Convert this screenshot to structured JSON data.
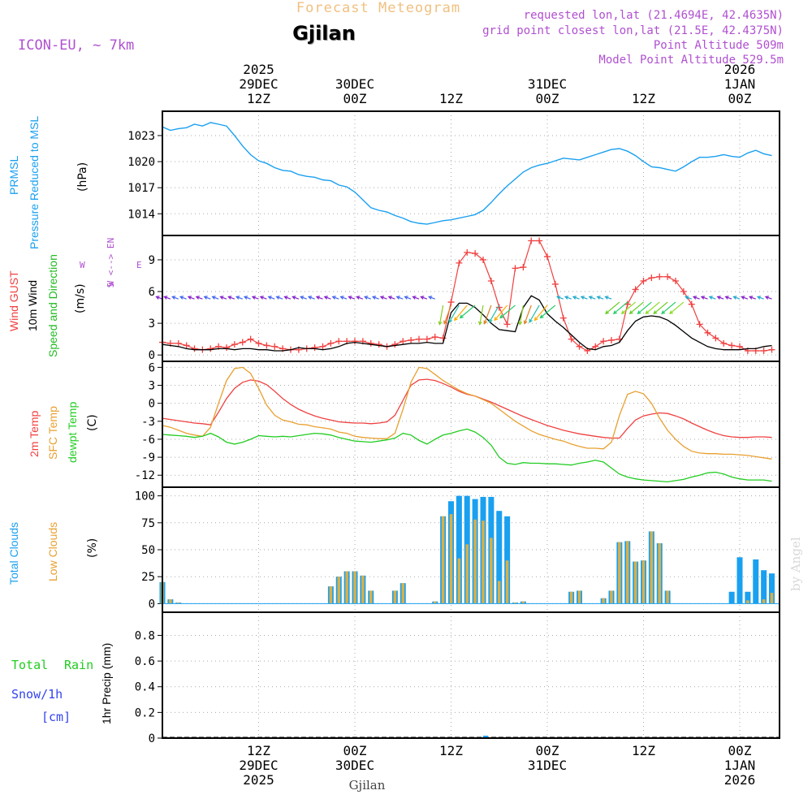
{
  "header": {
    "product": "Forecast Meteogram",
    "location": "Gjilan",
    "model": "ICON-EU, ~ 7km",
    "requested": "requested lon,lat (21.4694E, 42.4635N)",
    "gridpoint": "grid point closest lon,lat (21.5E, 42.4375N)",
    "point_alt": "Point Altitude 509m",
    "model_alt": "Model Point Altitude 529.5m",
    "footer_label": "Gjilan",
    "credit": "by Angel"
  },
  "colors": {
    "pressure": "#1aa0f0",
    "gust": "#f04040",
    "wind": "#000000",
    "dir_label": "#22bb22",
    "temp2m": "#f04040",
    "sfc": "#e8a030",
    "dewpt": "#22cc22",
    "total_cloud": "#1aa0f0",
    "low_cloud": "#d8b048",
    "rain": "#22cc22",
    "snow": "#3344ee",
    "header_purple": "#b050d0",
    "title_orange": "#f0c080"
  },
  "time_axis": {
    "top": [
      {
        "t": 12,
        "lines": [
          "2025",
          "29DEC",
          "12Z"
        ]
      },
      {
        "t": 24,
        "lines": [
          "30DEC",
          "00Z"
        ]
      },
      {
        "t": 36,
        "lines": [
          "12Z"
        ]
      },
      {
        "t": 48,
        "lines": [
          "31DEC",
          "00Z"
        ]
      },
      {
        "t": 60,
        "lines": [
          "12Z"
        ]
      },
      {
        "t": 72,
        "lines": [
          "2026",
          "1JAN",
          "00Z"
        ]
      }
    ],
    "bottom": [
      {
        "t": 12,
        "lines": [
          "12Z",
          "29DEC",
          "2025"
        ]
      },
      {
        "t": 24,
        "lines": [
          "00Z",
          "30DEC"
        ]
      },
      {
        "t": 36,
        "lines": [
          "12Z"
        ]
      },
      {
        "t": 48,
        "lines": [
          "00Z",
          "31DEC"
        ]
      },
      {
        "t": 60,
        "lines": [
          "12Z"
        ]
      },
      {
        "t": 72,
        "lines": [
          "00Z",
          "1JAN",
          "2026"
        ]
      }
    ]
  },
  "chart_data": [
    {
      "type": "line",
      "title": "PRMSL Pressure Reduced to MSL",
      "ylabel": "(hPa)",
      "ylim": [
        1011.5,
        1025.8
      ],
      "yticks": [
        1014,
        1017,
        1020,
        1023
      ],
      "x": [
        0,
        1,
        2,
        3,
        4,
        5,
        6,
        7,
        8,
        9,
        10,
        11,
        12,
        13,
        14,
        15,
        16,
        17,
        18,
        19,
        20,
        21,
        22,
        23,
        24,
        25,
        26,
        27,
        28,
        29,
        30,
        31,
        32,
        33,
        34,
        35,
        36,
        37,
        38,
        39,
        40,
        41,
        42,
        43,
        44,
        45,
        46,
        47,
        48,
        49,
        50,
        51,
        52,
        53,
        54,
        55,
        56,
        57,
        58,
        59,
        60,
        61,
        62,
        63,
        64,
        65,
        66,
        67,
        68,
        69,
        70,
        71,
        72,
        73,
        74,
        75,
        76
      ],
      "series": [
        {
          "name": "PRMSL",
          "values": [
            1024.0,
            1023.6,
            1023.8,
            1023.9,
            1024.3,
            1024.1,
            1024.5,
            1024.3,
            1024.1,
            1023.0,
            1021.8,
            1020.8,
            1020.1,
            1019.8,
            1019.3,
            1019.0,
            1018.9,
            1018.5,
            1018.3,
            1018.2,
            1017.9,
            1017.8,
            1017.3,
            1017.1,
            1016.5,
            1015.6,
            1014.7,
            1014.4,
            1014.2,
            1013.8,
            1013.5,
            1013.1,
            1012.9,
            1012.8,
            1013.0,
            1013.2,
            1013.3,
            1013.5,
            1013.7,
            1013.9,
            1014.4,
            1015.3,
            1016.3,
            1017.2,
            1018.0,
            1018.8,
            1019.3,
            1019.6,
            1019.8,
            1020.1,
            1020.4,
            1020.3,
            1020.2,
            1020.5,
            1020.8,
            1021.1,
            1021.4,
            1021.5,
            1021.2,
            1020.7,
            1020.0,
            1019.4,
            1019.3,
            1019.1,
            1018.9,
            1019.4,
            1020.0,
            1020.5,
            1020.5,
            1020.6,
            1020.8,
            1020.6,
            1020.5,
            1021.0,
            1021.3,
            1020.9,
            1020.7
          ]
        }
      ]
    },
    {
      "type": "line",
      "title": "Wind GUST / 10m Wind Speed and Direction",
      "ylabel": "(m/s)",
      "ylim": [
        -0.6,
        11.3
      ],
      "yticks": [
        0,
        3,
        6,
        9
      ],
      "compass": [
        "N",
        "W <--> E",
        "S"
      ],
      "x": [
        0,
        1,
        2,
        3,
        4,
        5,
        6,
        7,
        8,
        9,
        10,
        11,
        12,
        13,
        14,
        15,
        16,
        17,
        18,
        19,
        20,
        21,
        22,
        23,
        24,
        25,
        26,
        27,
        28,
        29,
        30,
        31,
        32,
        33,
        34,
        35,
        36,
        37,
        38,
        39,
        40,
        41,
        42,
        43,
        44,
        45,
        46,
        47,
        48,
        49,
        50,
        51,
        52,
        53,
        54,
        55,
        56,
        57,
        58,
        59,
        60,
        61,
        62,
        63,
        64,
        65,
        66,
        67,
        68,
        69,
        70,
        71,
        72,
        73,
        74,
        75,
        76
      ],
      "series": [
        {
          "name": "Wind GUST",
          "values": [
            1.2,
            1.1,
            1.1,
            0.9,
            0.6,
            0.5,
            0.6,
            0.8,
            0.7,
            1.0,
            1.2,
            1.5,
            1.1,
            0.9,
            0.8,
            0.6,
            0.5,
            0.5,
            0.6,
            0.7,
            0.8,
            1.1,
            1.3,
            1.3,
            1.3,
            1.3,
            1.1,
            1.0,
            0.8,
            1.0,
            1.3,
            1.4,
            1.5,
            1.5,
            1.7,
            1.6,
            5.0,
            8.7,
            9.7,
            9.6,
            9.0,
            7.0,
            4.5,
            2.9,
            8.2,
            8.3,
            10.8,
            10.8,
            9.3,
            6.7,
            3.5,
            1.5,
            0.8,
            0.4,
            0.8,
            1.3,
            1.4,
            1.5,
            4.8,
            6.2,
            7.0,
            7.3,
            7.4,
            7.4,
            7.0,
            6.0,
            4.8,
            2.9,
            2.1,
            1.6,
            1.1,
            0.9,
            0.8,
            0.4,
            0.4,
            0.4,
            0.5
          ]
        },
        {
          "name": "10m Wind",
          "values": [
            1.0,
            0.9,
            0.8,
            0.6,
            0.5,
            0.5,
            0.5,
            0.6,
            0.6,
            0.5,
            0.6,
            0.6,
            0.5,
            0.5,
            0.4,
            0.4,
            0.5,
            0.7,
            0.6,
            0.6,
            0.5,
            0.6,
            0.8,
            1.1,
            1.2,
            1.1,
            1.0,
            0.9,
            0.8,
            0.9,
            1.0,
            1.1,
            1.1,
            1.2,
            1.1,
            1.1,
            4.0,
            4.9,
            4.9,
            4.5,
            3.8,
            3.0,
            2.4,
            2.3,
            2.2,
            4.5,
            5.6,
            5.2,
            3.9,
            3.2,
            2.6,
            1.9,
            1.2,
            0.6,
            0.5,
            0.8,
            0.9,
            1.2,
            2.3,
            3.2,
            3.6,
            3.7,
            3.6,
            3.3,
            2.8,
            2.2,
            1.6,
            1.2,
            0.8,
            0.6,
            0.5,
            0.5,
            0.5,
            0.6,
            0.6,
            0.8,
            0.9
          ]
        }
      ]
    },
    {
      "type": "line",
      "title": "2m Temp / SFC Temp / dewpt Temp",
      "ylabel": "(C)",
      "ylim": [
        -14,
        7
      ],
      "yticks": [
        -12,
        -9,
        -6,
        -3,
        0,
        3,
        6
      ],
      "x": [
        0,
        1,
        2,
        3,
        4,
        5,
        6,
        7,
        8,
        9,
        10,
        11,
        12,
        13,
        14,
        15,
        16,
        17,
        18,
        19,
        20,
        21,
        22,
        23,
        24,
        25,
        26,
        27,
        28,
        29,
        30,
        31,
        32,
        33,
        34,
        35,
        36,
        37,
        38,
        39,
        40,
        41,
        42,
        43,
        44,
        45,
        46,
        47,
        48,
        49,
        50,
        51,
        52,
        53,
        54,
        55,
        56,
        57,
        58,
        59,
        60,
        61,
        62,
        63,
        64,
        65,
        66,
        67,
        68,
        69,
        70,
        71,
        72,
        73,
        74,
        75,
        76
      ],
      "series": [
        {
          "name": "2m Temp",
          "values": [
            -2.5,
            -2.7,
            -2.9,
            -3.1,
            -3.3,
            -3.4,
            -3.6,
            -1.5,
            0.8,
            2.5,
            3.5,
            3.9,
            3.7,
            3.1,
            2.0,
            0.8,
            -0.2,
            -1.0,
            -1.6,
            -2.1,
            -2.5,
            -2.8,
            -3.1,
            -3.2,
            -3.3,
            -3.3,
            -3.4,
            -3.3,
            -3.1,
            -2.0,
            0.5,
            3.0,
            3.9,
            4.0,
            3.8,
            3.3,
            2.7,
            2.0,
            1.5,
            1.2,
            0.7,
            0.2,
            -0.4,
            -1.0,
            -1.6,
            -2.2,
            -2.7,
            -3.2,
            -3.7,
            -4.1,
            -4.5,
            -4.8,
            -5.1,
            -5.3,
            -5.5,
            -5.7,
            -5.8,
            -5.8,
            -4.2,
            -2.8,
            -2.1,
            -1.8,
            -1.6,
            -1.7,
            -2.1,
            -2.6,
            -3.3,
            -3.9,
            -4.5,
            -5.0,
            -5.4,
            -5.6,
            -5.7,
            -5.7,
            -5.6,
            -5.6,
            -5.7
          ]
        },
        {
          "name": "SFC Temp",
          "values": [
            -3.7,
            -4.0,
            -4.5,
            -5.0,
            -5.3,
            -5.5,
            -4.0,
            0.0,
            3.8,
            5.8,
            6.0,
            5.0,
            2.5,
            -0.3,
            -2.0,
            -2.8,
            -3.1,
            -3.5,
            -3.6,
            -3.9,
            -4.1,
            -4.3,
            -4.8,
            -5.0,
            -5.5,
            -5.7,
            -5.8,
            -5.9,
            -5.9,
            -5.0,
            -1.0,
            3.5,
            6.0,
            5.8,
            4.8,
            3.8,
            3.0,
            2.2,
            1.6,
            1.2,
            0.6,
            0.0,
            -1.0,
            -2.0,
            -3.0,
            -3.8,
            -4.6,
            -5.2,
            -5.6,
            -6.0,
            -6.3,
            -6.8,
            -7.2,
            -7.5,
            -7.5,
            -7.6,
            -6.5,
            -2.0,
            1.5,
            2.0,
            1.6,
            0.0,
            -2.5,
            -4.5,
            -6.0,
            -7.2,
            -8.0,
            -8.3,
            -8.4,
            -8.4,
            -8.5,
            -8.5,
            -8.6,
            -8.7,
            -8.9,
            -9.1,
            -9.3
          ]
        },
        {
          "name": "dewpt Temp",
          "values": [
            -5.2,
            -5.3,
            -5.4,
            -5.5,
            -5.7,
            -5.5,
            -5.0,
            -5.6,
            -6.5,
            -6.8,
            -6.5,
            -6.0,
            -5.4,
            -5.5,
            -5.6,
            -5.5,
            -5.6,
            -5.4,
            -5.2,
            -5.0,
            -5.1,
            -5.3,
            -5.7,
            -6.0,
            -6.3,
            -6.4,
            -6.5,
            -6.3,
            -6.1,
            -5.8,
            -5.0,
            -5.3,
            -6.2,
            -6.8,
            -6.0,
            -5.3,
            -5.0,
            -4.6,
            -4.3,
            -4.8,
            -5.7,
            -7.0,
            -9.0,
            -10.0,
            -10.2,
            -9.9,
            -10.0,
            -10.0,
            -10.1,
            -10.1,
            -10.2,
            -10.3,
            -10.0,
            -9.8,
            -9.5,
            -9.8,
            -10.8,
            -11.8,
            -12.3,
            -12.6,
            -12.8,
            -12.9,
            -13.0,
            -13.1,
            -12.9,
            -12.7,
            -12.3,
            -12.0,
            -11.6,
            -11.5,
            -11.8,
            -12.3,
            -12.6,
            -12.8,
            -12.8,
            -12.8,
            -13.0
          ]
        }
      ]
    },
    {
      "type": "bar",
      "title": "Total Clouds / Low Clouds",
      "ylabel": "(%)",
      "ylim": [
        -8,
        108
      ],
      "yticks": [
        0,
        25,
        50,
        75,
        100
      ],
      "x": [
        0,
        1,
        2,
        3,
        4,
        5,
        6,
        7,
        8,
        9,
        10,
        11,
        12,
        13,
        14,
        15,
        16,
        17,
        18,
        19,
        20,
        21,
        22,
        23,
        24,
        25,
        26,
        27,
        28,
        29,
        30,
        31,
        32,
        33,
        34,
        35,
        36,
        37,
        38,
        39,
        40,
        41,
        42,
        43,
        44,
        45,
        46,
        47,
        48,
        49,
        50,
        51,
        52,
        53,
        54,
        55,
        56,
        57,
        58,
        59,
        60,
        61,
        62,
        63,
        64,
        65,
        66,
        67,
        68,
        69,
        70,
        71,
        72,
        73,
        74,
        75,
        76
      ],
      "series": [
        {
          "name": "Total Clouds",
          "values": [
            20,
            4,
            1,
            0,
            0,
            0,
            0,
            0,
            0,
            0,
            0,
            0,
            0,
            0,
            0,
            0,
            0,
            0,
            0,
            0,
            0,
            16,
            25,
            30,
            30,
            26,
            12,
            0,
            0,
            12,
            19,
            0,
            0,
            0,
            2,
            81,
            95,
            100,
            100,
            97,
            99,
            99,
            86,
            81,
            1,
            2,
            0,
            0,
            0,
            0,
            0,
            11,
            12,
            0,
            0,
            5,
            12,
            57,
            58,
            39,
            40,
            67,
            56,
            12,
            0,
            0,
            0,
            0,
            0,
            0,
            0,
            11,
            43,
            11,
            41,
            31,
            28
          ]
        },
        {
          "name": "Low Clouds",
          "values": [
            20,
            4,
            1,
            0,
            0,
            0,
            0,
            0,
            0,
            0,
            0,
            0,
            0,
            0,
            0,
            0,
            0,
            0,
            0,
            0,
            0,
            16,
            25,
            30,
            30,
            26,
            12,
            0,
            0,
            12,
            19,
            0,
            0,
            0,
            2,
            81,
            83,
            42,
            55,
            78,
            77,
            61,
            21,
            40,
            1,
            2,
            0,
            0,
            0,
            0,
            0,
            11,
            12,
            0,
            0,
            5,
            12,
            57,
            58,
            39,
            40,
            67,
            56,
            12,
            0,
            0,
            0,
            0,
            0,
            0,
            0,
            0,
            0,
            3,
            0,
            4,
            10
          ]
        }
      ]
    },
    {
      "type": "bar",
      "title": "Total Rain / Snow/1h [cm]",
      "ylabel": "1hr Precip (mm)",
      "ylim": [
        0,
        0.98
      ],
      "yticks": [
        0,
        0.2,
        0.4,
        0.6,
        0.8
      ],
      "tick_labels": [
        "0",
        "0.2",
        "0.4",
        "0.6",
        "0.8"
      ],
      "legend": [
        "Total",
        "Rain",
        "Snow/1h",
        "[cm]"
      ],
      "series": [
        {
          "name": "Total Rain",
          "values": [
            0
          ]
        },
        {
          "name": "Snow/1h",
          "values": [
            0
          ]
        }
      ]
    }
  ]
}
